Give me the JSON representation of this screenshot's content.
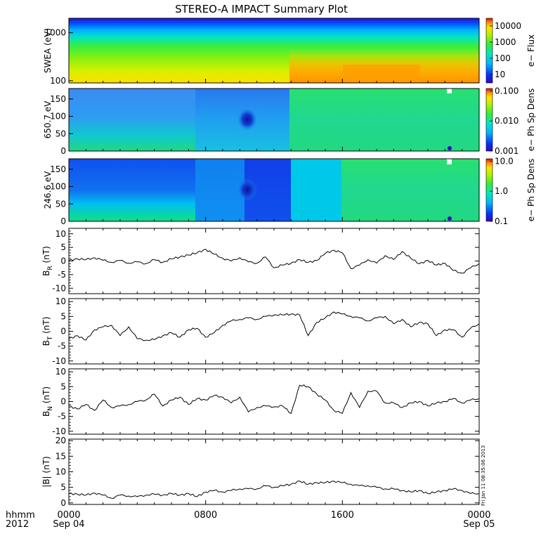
{
  "title": "STEREO-A IMPACT Summary Plot",
  "footer": {
    "row1_label": "hhmm",
    "row2_label": "2012",
    "ticks": [
      {
        "top": "0000",
        "bottom": "Sep 04"
      },
      {
        "top": "0800",
        "bottom": ""
      },
      {
        "top": "1600",
        "bottom": ""
      },
      {
        "top": "0000",
        "bottom": "Sep 05"
      }
    ],
    "stamp": "Fri Jan 11 08:35:06 2013"
  },
  "chart_data": [
    {
      "type": "heatmap",
      "ylabel": "SWEA (eV)",
      "yscale": "log",
      "ylim": [
        90,
        2000
      ],
      "yticks": [
        "100",
        "1000"
      ],
      "colorbar": {
        "label": "e− Flux",
        "scale": "log",
        "ticks": [
          "10",
          "100",
          "1000",
          "10000"
        ],
        "range": [
          3,
          30000
        ]
      },
      "x": [
        "00:00",
        "23:59"
      ],
      "description_of_values": "high flux at low energies rising sharply after ~13:00"
    },
    {
      "type": "heatmap",
      "ylabel": "650.7 eV",
      "ylim": [
        0,
        180
      ],
      "yticks": [
        "0",
        "50",
        "100",
        "150"
      ],
      "colorbar": {
        "label": "e− Ph Sp Dens",
        "scale": "log",
        "ticks": [
          "0.001",
          "0.010",
          "0.100"
        ],
        "range": [
          0.001,
          0.12
        ]
      }
    },
    {
      "type": "heatmap",
      "ylabel": "246.6 eV",
      "ylim": [
        0,
        180
      ],
      "yticks": [
        "0",
        "50",
        "100",
        "150"
      ],
      "colorbar": {
        "label": "e− Ph Sp Dens",
        "scale": "log",
        "ticks": [
          "0.1",
          "1.0",
          "10.0"
        ],
        "range": [
          0.1,
          12
        ]
      }
    },
    {
      "type": "line",
      "ylabel": "B_R (nT)",
      "ylabel_main": "B",
      "ylabel_sub": "R",
      "ylabel_unit": "(nT)",
      "ylim": [
        -12,
        12
      ],
      "yticks": [
        "-10",
        "-5",
        "0",
        "5",
        "10"
      ],
      "x_hours": [
        0,
        0.5,
        1,
        1.5,
        2,
        2.5,
        3,
        3.5,
        4,
        4.5,
        5,
        5.5,
        6,
        6.5,
        7,
        7.5,
        8,
        8.5,
        9,
        9.5,
        10,
        10.5,
        11,
        11.5,
        12,
        12.5,
        13,
        13.5,
        14,
        14.5,
        15,
        15.5,
        16,
        16.5,
        17,
        17.5,
        18,
        18.5,
        19,
        19.5,
        20,
        20.5,
        21,
        21.5,
        22,
        22.5,
        23,
        23.5,
        24
      ],
      "values": [
        0.2,
        0.8,
        0.5,
        1.2,
        0.3,
        -0.5,
        0.2,
        -0.8,
        -0.3,
        -1.0,
        0.5,
        -0.5,
        0.8,
        1.5,
        2.2,
        3.0,
        4.3,
        2.5,
        1.0,
        0,
        1.2,
        -0.3,
        -0.8,
        1.5,
        -2.5,
        -1.5,
        -0.8,
        0.5,
        -0.5,
        0.2,
        2.8,
        4.0,
        3.0,
        -2.8,
        -1.5,
        0.5,
        -0.8,
        2.0,
        0.5,
        3.5,
        1.0,
        -1.0,
        0.2,
        -1.5,
        -0.8,
        -3.5,
        -4.5,
        -2.5,
        -1.0
      ]
    },
    {
      "type": "line",
      "ylabel": "B_T (nT)",
      "ylabel_main": "B",
      "ylabel_sub": "T",
      "ylabel_unit": "(nT)",
      "ylim": [
        -11,
        11
      ],
      "yticks": [
        "-10",
        "-5",
        "0",
        "5",
        "10"
      ],
      "x_hours": [
        0,
        0.5,
        1,
        1.5,
        2,
        2.5,
        3,
        3.5,
        4,
        4.5,
        5,
        5.5,
        6,
        6.5,
        7,
        7.5,
        8,
        8.5,
        9,
        9.5,
        10,
        10.5,
        11,
        11.5,
        12,
        12.5,
        13,
        13.5,
        14,
        14.5,
        15,
        15.5,
        16,
        16.5,
        17,
        17.5,
        18,
        18.5,
        19,
        19.5,
        20,
        20.5,
        21,
        21.5,
        22,
        22.5,
        23,
        23.5,
        24
      ],
      "values": [
        -2.5,
        -1.5,
        -3.0,
        0.5,
        1.5,
        2.0,
        -1.5,
        1.5,
        -2.5,
        -3.0,
        -2.8,
        -1.5,
        -0.5,
        -2.0,
        0.5,
        1.0,
        -2.0,
        -0.5,
        2.0,
        3.5,
        4.0,
        4.5,
        4.0,
        5.0,
        5.5,
        5.5,
        5.8,
        5.5,
        -1.5,
        3.0,
        4.5,
        6.5,
        5.8,
        5.0,
        4.5,
        3.5,
        4.5,
        5.0,
        2.5,
        4.0,
        1.5,
        3.0,
        2.5,
        -1.5,
        0.5,
        0.5,
        -2.0,
        1.0,
        2.5
      ]
    },
    {
      "type": "line",
      "ylabel": "B_N (nT)",
      "ylabel_main": "B",
      "ylabel_sub": "N",
      "ylabel_unit": "(nT)",
      "ylim": [
        -11,
        11
      ],
      "yticks": [
        "-10",
        "-5",
        "0",
        "5",
        "10"
      ],
      "x_hours": [
        0,
        0.5,
        1,
        1.5,
        2,
        2.5,
        3,
        3.5,
        4,
        4.5,
        5,
        5.5,
        6,
        6.5,
        7,
        7.5,
        8,
        8.5,
        9,
        9.5,
        10,
        10.5,
        11,
        11.5,
        12,
        12.5,
        13,
        13.5,
        14,
        14.5,
        15,
        15.5,
        16,
        16.5,
        17,
        17.5,
        18,
        18.5,
        19,
        19.5,
        20,
        20.5,
        21,
        21.5,
        22,
        22.5,
        23,
        23.5,
        24
      ],
      "values": [
        -1.5,
        -2.5,
        -1.0,
        -3.0,
        0.5,
        -2.0,
        -1.5,
        -1.0,
        0.0,
        0.5,
        2.5,
        -1.5,
        0.5,
        1.5,
        -1.0,
        1.0,
        0.5,
        2.0,
        1.5,
        -0.5,
        1.5,
        -3.5,
        -2.0,
        -1.5,
        -1.8,
        -1.5,
        -4.0,
        5.5,
        5.0,
        2.5,
        0.5,
        -3.0,
        -4.0,
        3.0,
        -2.0,
        3.5,
        3.5,
        -0.5,
        -0.5,
        -2.0,
        -0.5,
        0.0,
        -1.5,
        -0.5,
        0.0,
        1.0,
        -0.5,
        0.5,
        1.0
      ]
    },
    {
      "type": "line",
      "ylabel": "|B| (nT)",
      "ylabel_main": "|B|",
      "ylabel_sub": "",
      "ylabel_unit": "(nT)",
      "ylim": [
        -0.5,
        20.5
      ],
      "yticks": [
        "0",
        "5",
        "10",
        "15",
        "20"
      ],
      "x_hours": [
        0,
        0.5,
        1,
        1.5,
        2,
        2.5,
        3,
        3.5,
        4,
        4.5,
        5,
        5.5,
        6,
        6.5,
        7,
        7.5,
        8,
        8.5,
        9,
        9.5,
        10,
        10.5,
        11,
        11.5,
        12,
        12.5,
        13,
        13.5,
        14,
        14.5,
        15,
        15.5,
        16,
        16.5,
        17,
        17.5,
        18,
        18.5,
        19,
        19.5,
        20,
        20.5,
        21,
        21.5,
        22,
        22.5,
        23,
        23.5,
        24
      ],
      "values": [
        3.0,
        2.8,
        2.5,
        3.2,
        2.5,
        1.5,
        2.5,
        2.2,
        2.0,
        2.5,
        2.8,
        2.5,
        3.0,
        2.5,
        3.0,
        2.0,
        3.5,
        4.0,
        3.5,
        4.0,
        4.5,
        4.5,
        4.5,
        5.5,
        5.0,
        5.5,
        6.0,
        7.0,
        6.0,
        6.5,
        6.5,
        7.0,
        6.5,
        6.0,
        5.5,
        5.5,
        5.0,
        4.5,
        4.5,
        4.0,
        3.5,
        4.0,
        3.0,
        3.5,
        4.0,
        4.5,
        4.0,
        3.0,
        3.0
      ]
    }
  ]
}
